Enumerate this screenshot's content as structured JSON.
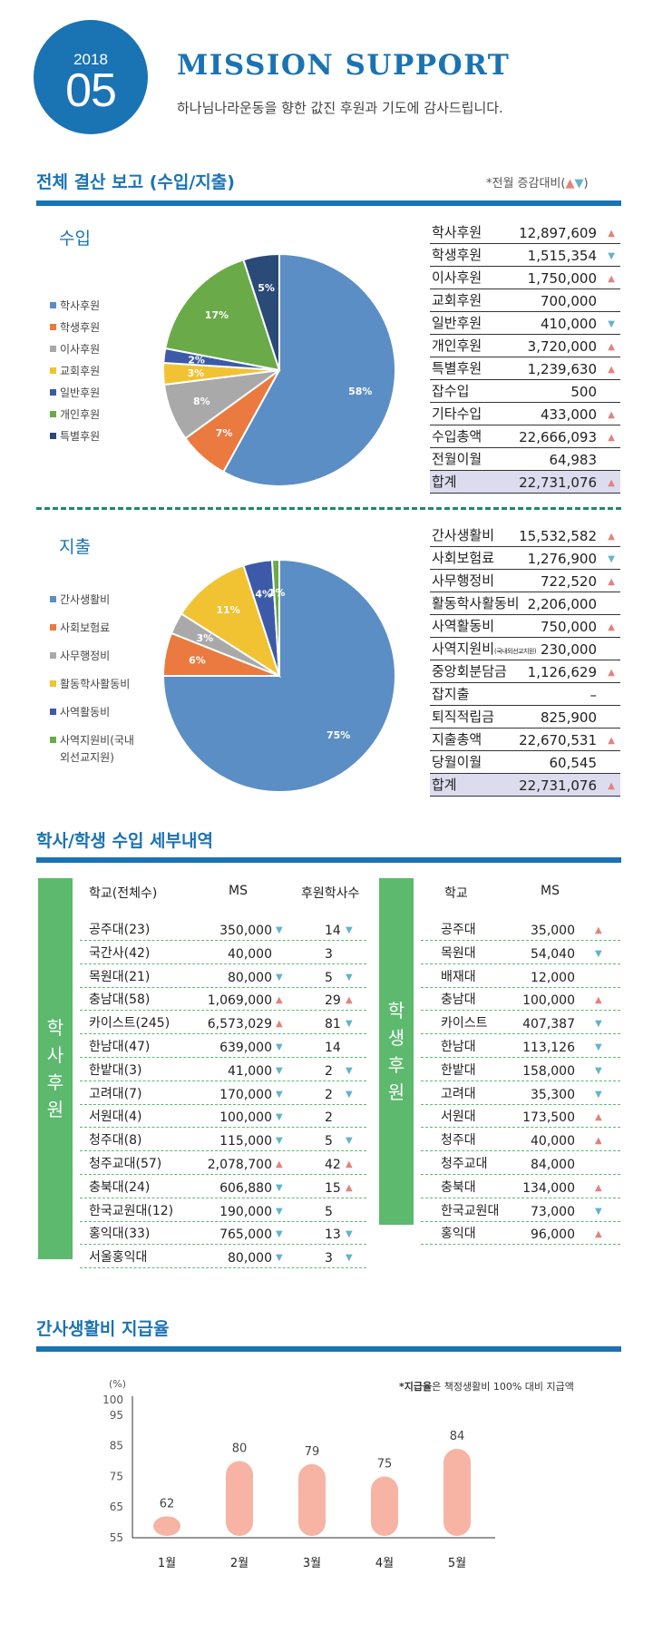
{
  "header": {
    "year": "2018",
    "month": "05",
    "title": "MISSION SUPPORT",
    "subtitle": "하나님나라운동을 향한 값진 후원과 기도에 감사드립니다."
  },
  "section1": {
    "title": "전체 결산 보고 (수입/지출)",
    "note": "*전월 증감대비(",
    "note_up": "▲",
    "note_down": "▼",
    "note_end": ")"
  },
  "income": {
    "heading": "수입",
    "legend": [
      "학사후원",
      "학생후원",
      "이사후원",
      "교회후원",
      "일반후원",
      "개인후원",
      "특별후원"
    ],
    "colors": [
      "#5b8ec4",
      "#ea7a3f",
      "#a9a9a9",
      "#f1c232",
      "#3c5aa7",
      "#6aaa48",
      "#2a4a78"
    ],
    "slices": [
      {
        "label": "58%",
        "value": 58
      },
      {
        "label": "7%",
        "value": 7
      },
      {
        "label": "8%",
        "value": 8
      },
      {
        "label": "3%",
        "value": 3
      },
      {
        "label": "2%",
        "value": 2
      },
      {
        "label": "17%",
        "value": 17
      },
      {
        "label": "5%",
        "value": 5
      }
    ],
    "rows": [
      {
        "label": "학사후원",
        "value": "12,897,609",
        "arrow": "up"
      },
      {
        "label": "학생후원",
        "value": "1,515,354",
        "arrow": "down"
      },
      {
        "label": "이사후원",
        "value": "1,750,000",
        "arrow": "up"
      },
      {
        "label": "교회후원",
        "value": "700,000",
        "arrow": ""
      },
      {
        "label": "일반후원",
        "value": "410,000",
        "arrow": "down"
      },
      {
        "label": "개인후원",
        "value": "3,720,000",
        "arrow": "up"
      },
      {
        "label": "특별후원",
        "value": "1,239,630",
        "arrow": "up"
      },
      {
        "label": "잡수입",
        "value": "500",
        "arrow": ""
      },
      {
        "label": "기타수입",
        "value": "433,000",
        "arrow": "up"
      },
      {
        "label": "수입총액",
        "value": "22,666,093",
        "arrow": "up"
      },
      {
        "label": "전월이월",
        "value": "64,983",
        "arrow": ""
      }
    ],
    "total": {
      "label": "합계",
      "value": "22,731,076",
      "arrow": "up"
    }
  },
  "expense": {
    "heading": "지출",
    "legend": [
      "간사생활비",
      "사회보험료",
      "사무행정비",
      "활동학사활동비",
      "사역활동비",
      "사역지원비(국내",
      "외선교지원)"
    ],
    "colors": [
      "#5b8ec4",
      "#ea7a3f",
      "#a9a9a9",
      "#f1c232",
      "#3c5aa7",
      "#6aaa48"
    ],
    "slices": [
      {
        "label": "75%",
        "value": 75
      },
      {
        "label": "6%",
        "value": 6
      },
      {
        "label": "3%",
        "value": 3
      },
      {
        "label": "11%",
        "value": 11
      },
      {
        "label": "4%",
        "value": 4
      },
      {
        "label": "1%",
        "value": 1
      }
    ],
    "rows": [
      {
        "label": "간사생활비",
        "value": "15,532,582",
        "arrow": "up"
      },
      {
        "label": "사회보험료",
        "value": "1,276,900",
        "arrow": "down"
      },
      {
        "label": "사무행정비",
        "value": "722,520",
        "arrow": "up"
      },
      {
        "label": "활동학사활동비",
        "value": "2,206,000",
        "arrow": ""
      },
      {
        "label": "사역활동비",
        "value": "750,000",
        "arrow": "up"
      },
      {
        "label": "사역지원비",
        "note": "(국내외선교지원)",
        "value": "230,000",
        "arrow": ""
      },
      {
        "label": "중앙회분담금",
        "value": "1,126,629",
        "arrow": "up"
      },
      {
        "label": "잡지출",
        "value": "–",
        "arrow": ""
      },
      {
        "label": "퇴직적립금",
        "value": "825,900",
        "arrow": ""
      },
      {
        "label": "지출총액",
        "value": "22,670,531",
        "arrow": "up"
      },
      {
        "label": "당월이월",
        "value": "60,545",
        "arrow": ""
      }
    ],
    "total": {
      "label": "합계",
      "value": "22,731,076",
      "arrow": "up"
    }
  },
  "section2": {
    "title": "학사/학생 수입 세부내역",
    "haksa": {
      "band": [
        "학",
        "사",
        "후",
        "원"
      ],
      "head": [
        "학교(전체수)",
        "MS",
        "후원학사수"
      ],
      "rows": [
        {
          "school": "공주대(23)",
          "ms": "350,000",
          "ms_arrow": "down",
          "count": "14",
          "count_arrow": "down"
        },
        {
          "school": "국간사(42)",
          "ms": "40,000",
          "ms_arrow": "",
          "count": "3",
          "count_arrow": ""
        },
        {
          "school": "목원대(21)",
          "ms": "80,000",
          "ms_arrow": "down",
          "count": "5",
          "count_arrow": "down"
        },
        {
          "school": "충남대(58)",
          "ms": "1,069,000",
          "ms_arrow": "up",
          "count": "29",
          "count_arrow": "up"
        },
        {
          "school": "카이스트(245)",
          "ms": "6,573,029",
          "ms_arrow": "up",
          "count": "81",
          "count_arrow": "down"
        },
        {
          "school": "한남대(47)",
          "ms": "639,000",
          "ms_arrow": "down",
          "count": "14",
          "count_arrow": ""
        },
        {
          "school": "한밭대(3)",
          "ms": "41,000",
          "ms_arrow": "down",
          "count": "2",
          "count_arrow": "down"
        },
        {
          "school": "고려대(7)",
          "ms": "170,000",
          "ms_arrow": "down",
          "count": "2",
          "count_arrow": "down"
        },
        {
          "school": "서원대(4)",
          "ms": "100,000",
          "ms_arrow": "down",
          "count": "2",
          "count_arrow": ""
        },
        {
          "school": "청주대(8)",
          "ms": "115,000",
          "ms_arrow": "down",
          "count": "5",
          "count_arrow": "down"
        },
        {
          "school": "청주교대(57)",
          "ms": "2,078,700",
          "ms_arrow": "up",
          "count": "42",
          "count_arrow": "up"
        },
        {
          "school": "충북대(24)",
          "ms": "606,880",
          "ms_arrow": "down",
          "count": "15",
          "count_arrow": "up"
        },
        {
          "school": "한국교원대(12)",
          "ms": "190,000",
          "ms_arrow": "down",
          "count": "5",
          "count_arrow": ""
        },
        {
          "school": "홍익대(33)",
          "ms": "765,000",
          "ms_arrow": "down",
          "count": "13",
          "count_arrow": "down"
        },
        {
          "school": "서울홍익대",
          "ms": "80,000",
          "ms_arrow": "down",
          "count": "3",
          "count_arrow": "down"
        }
      ]
    },
    "student": {
      "band": [
        "학",
        "생",
        "후",
        "원"
      ],
      "head": [
        "학교",
        "MS"
      ],
      "rows": [
        {
          "school": "공주대",
          "ms": "35,000",
          "ms_arrow": "up"
        },
        {
          "school": "목원대",
          "ms": "54,040",
          "ms_arrow": "down"
        },
        {
          "school": "배재대",
          "ms": "12,000",
          "ms_arrow": ""
        },
        {
          "school": "충남대",
          "ms": "100,000",
          "ms_arrow": "up"
        },
        {
          "school": "카이스트",
          "ms": "407,387",
          "ms_arrow": "down"
        },
        {
          "school": "한남대",
          "ms": "113,126",
          "ms_arrow": "down"
        },
        {
          "school": "한밭대",
          "ms": "158,000",
          "ms_arrow": "down"
        },
        {
          "school": "고려대",
          "ms": "35,300",
          "ms_arrow": "down"
        },
        {
          "school": "서원대",
          "ms": "173,500",
          "ms_arrow": "up"
        },
        {
          "school": "청주대",
          "ms": "40,000",
          "ms_arrow": "up"
        },
        {
          "school": "청주교대",
          "ms": "84,000",
          "ms_arrow": ""
        },
        {
          "school": "충북대",
          "ms": "134,000",
          "ms_arrow": "up"
        },
        {
          "school": "한국교원대",
          "ms": "73,000",
          "ms_arrow": "down"
        },
        {
          "school": "홍익대",
          "ms": "96,000",
          "ms_arrow": "up"
        }
      ]
    }
  },
  "section3": {
    "title": "간사생활비 지급율",
    "note_bold": "*지급율",
    "note_rest": "은 책정생활비 100% 대비 지급액"
  },
  "chart_data": {
    "type": "bar",
    "categories": [
      "1월",
      "2월",
      "3월",
      "4월",
      "5월"
    ],
    "values": [
      62,
      80,
      79,
      75,
      84
    ],
    "ylabel": "(%)",
    "yticks": [
      55,
      65,
      75,
      85,
      95,
      100
    ],
    "ylim": [
      55,
      100
    ],
    "bar_color": "#f7b3a4"
  }
}
